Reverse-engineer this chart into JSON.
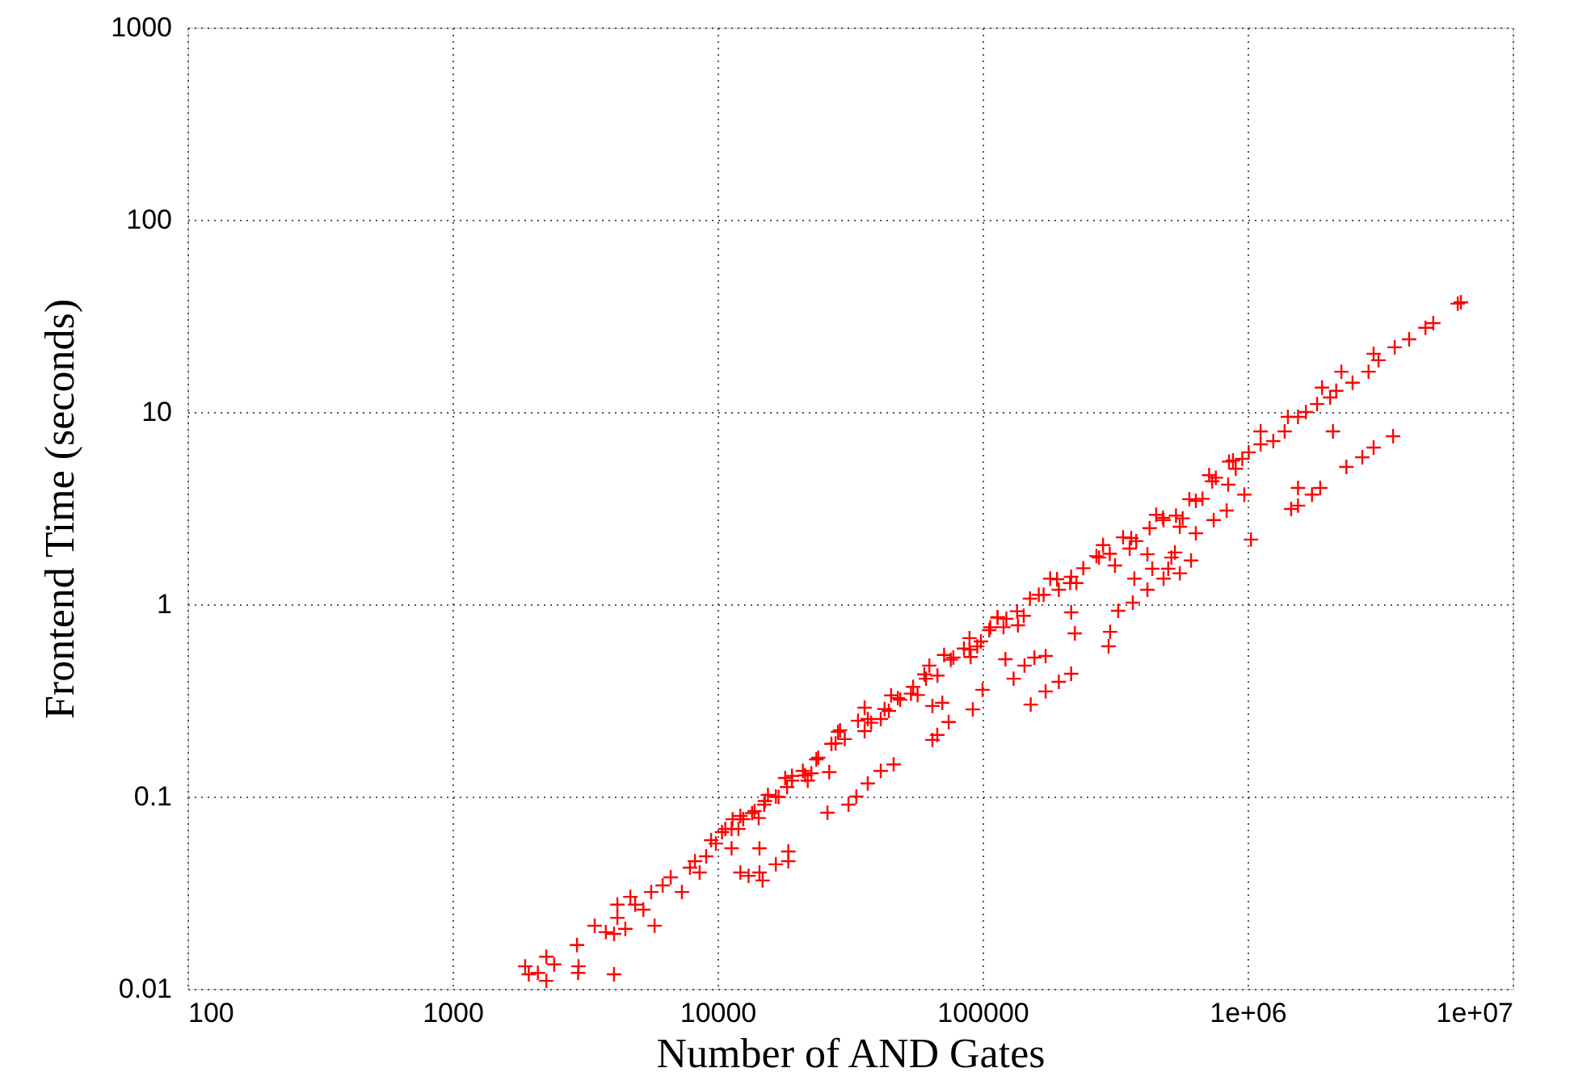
{
  "chart_data": {
    "type": "scatter",
    "xlabel": "Number of AND Gates",
    "ylabel": "Frontend Time (seconds)",
    "x": [
      1880,
      1940,
      2100,
      2260,
      2260,
      2420,
      2950,
      2990,
      2980,
      4070,
      3440,
      3790,
      4070,
      4190,
      4190,
      4490,
      4690,
      4890,
      5250,
      5790,
      5620,
      6210,
      6660,
      7340,
      7870,
      8560,
      9060,
      9860,
      10400,
      11300,
      12500,
      13800,
      15000,
      16600,
      18300,
      21900,
      26400,
      11300,
      12200,
      13100,
      14400,
      14800,
      16600,
      18500,
      18500,
      14400,
      26000,
      31200,
      33400,
      36900,
      21000,
      27900,
      36900,
      48900,
      61200,
      77600,
      98600,
      123000,
      163000,
      216000,
      275000,
      364000,
      482000,
      638000,
      735000,
      881000,
      1010000,
      1120000,
      1250000,
      1380000,
      1550000,
      1660000,
      1830000,
      2050000,
      2160000,
      1910000,
      2260000,
      2490000,
      2860000,
      3120000,
      2990000,
      3590000,
      4070000,
      4690000,
      5020000,
      6210000,
      6380000,
      1120000,
      1420000,
      2100000,
      3540000,
      2990000,
      2710000,
      2360000,
      1880000,
      1750000,
      1550000,
      1550000,
      1460000,
      972000,
      834000,
      745000,
      638000,
      1030000,
      532000,
      612000,
      502000,
      437000,
      374000,
      419000,
      482000,
      555000,
      41300,
      46200,
      64700,
      67500,
      74500,
      91900,
      100000,
      64700,
      70500,
      152000,
      173000,
      194000,
      216000,
      131000,
      144000,
      157000,
      173000,
      122000,
      223000,
      216000,
      299000,
      303000,
      325000,
      369000,
      114000,
      516000,
      29000,
      41300,
      54700,
      89300,
      136000,
      194000,
      106000,
      316000,
      419000,
      555000,
      845000,
      44300,
      23600,
      19100,
      15500,
      12200,
      9460,
      8220,
      89300,
      63000,
      35900,
      10700,
      12000,
      13500,
      15100,
      17000,
      19100,
      21400,
      24000,
      26900,
      30200,
      33900,
      38000,
      42700,
      47900,
      53700,
      60300,
      67600,
      75900,
      85100,
      95500,
      107000,
      120000,
      135000,
      151000,
      170000,
      191000,
      214000,
      240000,
      269000,
      302000,
      339000,
      380000,
      427000,
      479000,
      537000,
      603000,
      676000,
      759000,
      851000,
      955000,
      11400,
      14300,
      18000,
      22600,
      28500,
      35900,
      45200,
      56900,
      71600,
      90200,
      114000,
      143000,
      180000,
      226000,
      285000,
      359000,
      452000,
      569000,
      716000,
      902000
    ],
    "values": [
      0.0131,
      0.0119,
      0.0121,
      0.011,
      0.0147,
      0.0134,
      0.0169,
      0.0131,
      0.0121,
      0.0119,
      0.0213,
      0.0197,
      0.0193,
      0.0234,
      0.0274,
      0.0205,
      0.0301,
      0.0274,
      0.0258,
      0.0213,
      0.0319,
      0.0345,
      0.038,
      0.0319,
      0.0427,
      0.0403,
      0.0489,
      0.057,
      0.0653,
      0.0679,
      0.0763,
      0.084,
      0.0908,
      0.1,
      0.112,
      0.121,
      0.134,
      0.0538,
      0.0403,
      0.0387,
      0.0403,
      0.0366,
      0.0444,
      0.0518,
      0.0461,
      0.0538,
      0.0824,
      0.0908,
      0.1,
      0.117,
      0.136,
      0.189,
      0.253,
      0.319,
      0.41,
      0.528,
      0.641,
      0.84,
      1.12,
      1.39,
      1.75,
      2.21,
      2.74,
      3.45,
      4.36,
      5.6,
      6.17,
      6.79,
      7.06,
      7.93,
      9.44,
      10.0,
      11.0,
      11.9,
      12.9,
      13.4,
      16.2,
      14.2,
      16.2,
      18.6,
      20.1,
      21.7,
      23.9,
      27.4,
      29.0,
      36.6,
      37.2,
      7.93,
      9.44,
      7.93,
      7.48,
      6.53,
      5.82,
      5.18,
      4.03,
      3.72,
      4.03,
      3.26,
      3.13,
      3.72,
      3.07,
      2.74,
      2.34,
      2.17,
      1.86,
      1.69,
      1.53,
      1.53,
      1.36,
      1.19,
      1.36,
      1.45,
      0.136,
      0.147,
      0.197,
      0.209,
      0.244,
      0.284,
      0.359,
      0.296,
      0.307,
      0.301,
      0.352,
      0.395,
      0.435,
      0.41,
      0.48,
      0.528,
      0.538,
      0.518,
      0.706,
      0.908,
      0.605,
      0.719,
      0.925,
      1.02,
      0.857,
      1.75,
      0.221,
      0.253,
      0.372,
      0.582,
      0.778,
      1.19,
      0.734,
      1.59,
      1.82,
      2.53,
      4.19,
      0.279,
      0.156,
      0.121,
      0.102,
      0.0793,
      0.0593,
      0.0461,
      0.667,
      0.48,
      0.29,
      0.0678,
      0.0678,
      0.082,
      0.0948,
      0.0995,
      0.128,
      0.129,
      0.159,
      0.188,
      0.199,
      0.248,
      0.242,
      0.285,
      0.325,
      0.343,
      0.432,
      0.426,
      0.515,
      0.589,
      0.604,
      0.759,
      0.76,
      0.92,
      1.07,
      1.12,
      1.35,
      1.29,
      1.54,
      1.78,
      1.83,
      2.23,
      2.13,
      2.49,
      2.82,
      2.89,
      3.52,
      3.54,
      4.55,
      5.52,
      5.71,
      0.0762,
      0.0773,
      0.125,
      0.132,
      0.217,
      0.219,
      0.336,
      0.337,
      0.545,
      0.532,
      0.853,
      0.871,
      1.36,
      1.29,
      2.03,
      1.95,
      2.92,
      2.8,
      4.69,
      5.07
    ],
    "color": "#ff0000",
    "marker": "cross",
    "log": "xy",
    "grid": true,
    "xlim": [
      100,
      10000000
    ],
    "ylim": [
      0.01,
      1000
    ],
    "xticks": [
      100,
      1000,
      10000,
      100000,
      {
        "value": 1000000,
        "label": "1e+06"
      },
      {
        "value": 10000000,
        "label": "1e+07"
      }
    ],
    "yticks": [
      0.01,
      0.1,
      1,
      10,
      100,
      1000
    ]
  }
}
